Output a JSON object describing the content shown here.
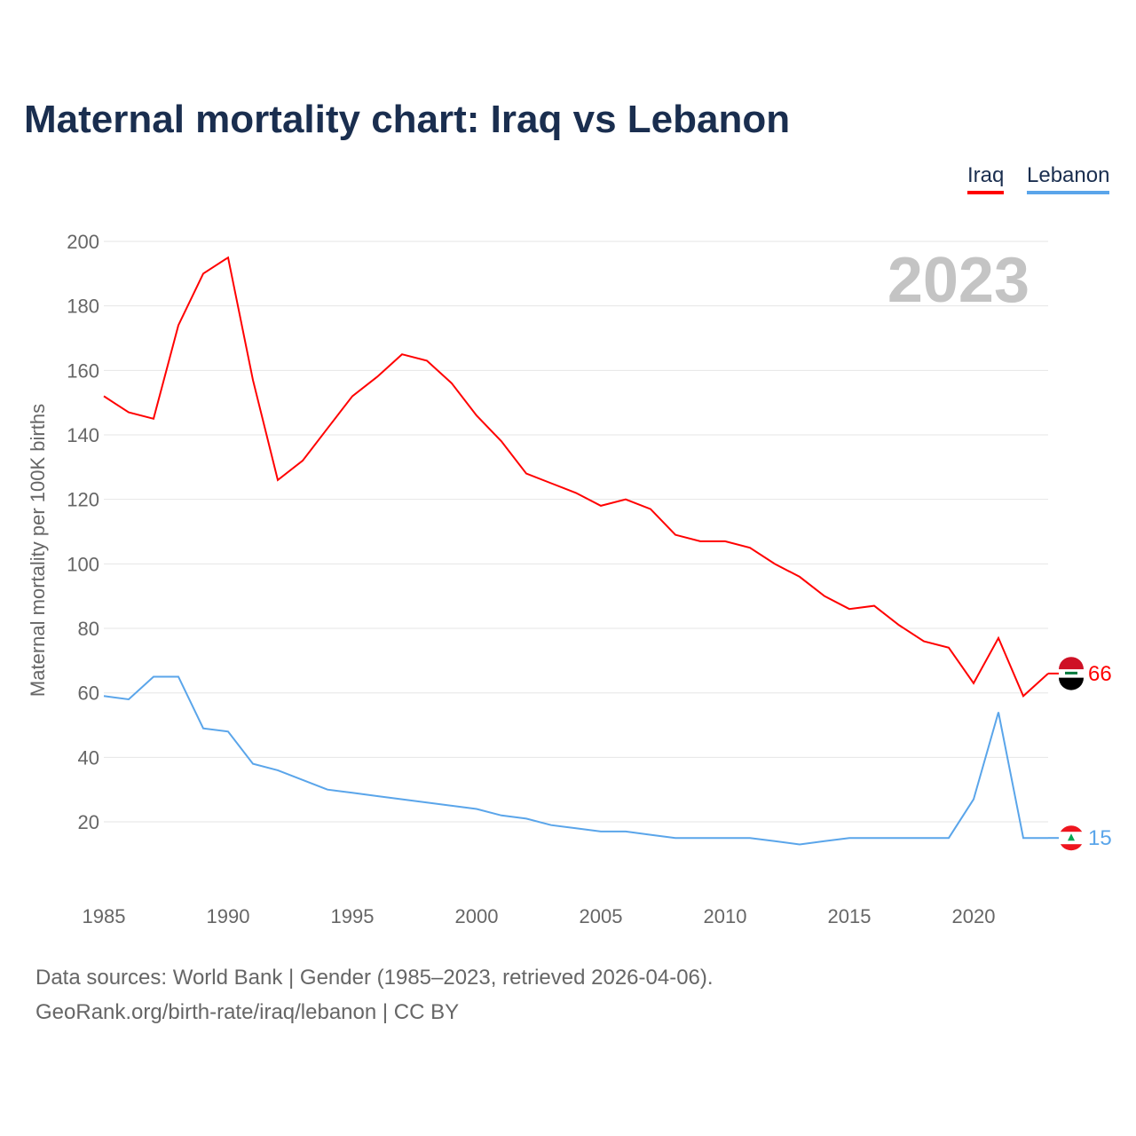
{
  "chart_data": {
    "type": "line",
    "title": "Maternal mortality chart: Iraq vs Lebanon",
    "ylabel": "Maternal mortality per 100K births",
    "xlabel": "",
    "year_watermark": "2023",
    "ylim": [
      0,
      200
    ],
    "yticks": [
      20,
      40,
      60,
      80,
      100,
      120,
      140,
      160,
      180,
      200
    ],
    "xlim": [
      1985,
      2023
    ],
    "xticks": [
      1985,
      1990,
      1995,
      2000,
      2005,
      2010,
      2015,
      2020
    ],
    "grid": true,
    "legend_position": "top-right",
    "x": [
      1985,
      1986,
      1987,
      1988,
      1989,
      1990,
      1991,
      1992,
      1993,
      1994,
      1995,
      1996,
      1997,
      1998,
      1999,
      2000,
      2001,
      2002,
      2003,
      2004,
      2005,
      2006,
      2007,
      2008,
      2009,
      2010,
      2011,
      2012,
      2013,
      2014,
      2015,
      2016,
      2017,
      2018,
      2019,
      2020,
      2021,
      2022,
      2023
    ],
    "series": [
      {
        "name": "Iraq",
        "color": "#ff0000",
        "end_label": "66",
        "values": [
          152,
          147,
          145,
          174,
          190,
          195,
          157,
          126,
          132,
          142,
          152,
          158,
          165,
          163,
          156,
          146,
          138,
          128,
          125,
          122,
          118,
          120,
          117,
          109,
          107,
          107,
          105,
          100,
          96,
          90,
          86,
          87,
          81,
          76,
          74,
          63,
          77,
          59,
          66
        ]
      },
      {
        "name": "Lebanon",
        "color": "#5aa5ea",
        "end_label": "15",
        "values": [
          59,
          58,
          65,
          65,
          49,
          48,
          38,
          36,
          33,
          30,
          29,
          28,
          27,
          26,
          25,
          24,
          22,
          21,
          19,
          18,
          17,
          17,
          16,
          15,
          15,
          15,
          15,
          14,
          13,
          14,
          15,
          15,
          15,
          15,
          15,
          27,
          54,
          15,
          15
        ]
      }
    ]
  },
  "footer": {
    "line1": "Data sources: World Bank | Gender (1985–2023, retrieved 2026-04-06).",
    "line2": "GeoRank.org/birth-rate/iraq/lebanon | CC BY"
  }
}
